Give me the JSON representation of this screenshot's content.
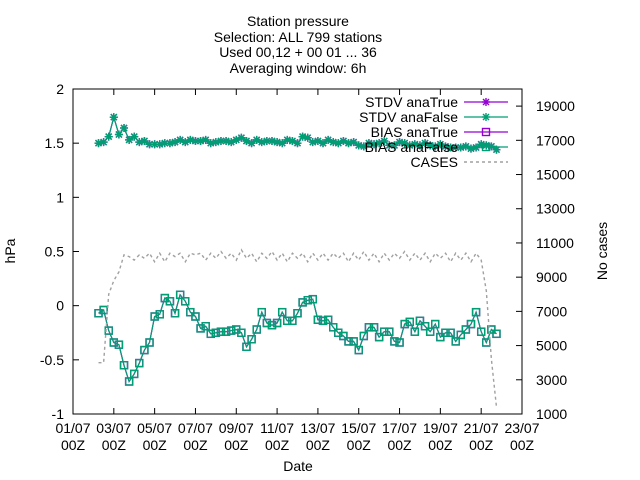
{
  "chart_data": {
    "type": "line",
    "title_lines": [
      "Station pressure",
      "Selection: ALL    799 stations",
      "Used 00,12 + 00 01 ... 36",
      "Averaging window:  6h"
    ],
    "xlabel": "Date",
    "ylabel": "hPa",
    "y2label": "No cases",
    "x_ticks": [
      {
        "day": 1,
        "label": "01/07",
        "sub": "00Z"
      },
      {
        "day": 3,
        "label": "03/07",
        "sub": "00Z"
      },
      {
        "day": 5,
        "label": "05/07",
        "sub": "00Z"
      },
      {
        "day": 7,
        "label": "07/07",
        "sub": "00Z"
      },
      {
        "day": 9,
        "label": "09/07",
        "sub": "00Z"
      },
      {
        "day": 11,
        "label": "11/07",
        "sub": "00Z"
      },
      {
        "day": 13,
        "label": "13/07",
        "sub": "00Z"
      },
      {
        "day": 15,
        "label": "15/07",
        "sub": "00Z"
      },
      {
        "day": 17,
        "label": "17/07",
        "sub": "00Z"
      },
      {
        "day": 19,
        "label": "19/07",
        "sub": "00Z"
      },
      {
        "day": 21,
        "label": "21/07",
        "sub": "00Z"
      },
      {
        "day": 23,
        "label": "23/07",
        "sub": "00Z"
      }
    ],
    "xlim": [
      1,
      23
    ],
    "ylim": [
      -1,
      2
    ],
    "y_ticks": [
      {
        "v": -1,
        "label": "-1"
      },
      {
        "v": -0.5,
        "label": "-0.5"
      },
      {
        "v": 0,
        "label": "0"
      },
      {
        "v": 0.5,
        "label": "0.5"
      },
      {
        "v": 1,
        "label": "1"
      },
      {
        "v": 1.5,
        "label": "1.5"
      },
      {
        "v": 2,
        "label": "2"
      }
    ],
    "y2lim": [
      1000,
      20000
    ],
    "y2_ticks": [
      {
        "v": 1000,
        "label": "1000"
      },
      {
        "v": 3000,
        "label": "3000"
      },
      {
        "v": 5000,
        "label": "5000"
      },
      {
        "v": 7000,
        "label": "7000"
      },
      {
        "v": 9000,
        "label": "9000"
      },
      {
        "v": 11000,
        "label": "11000"
      },
      {
        "v": 13000,
        "label": "13000"
      },
      {
        "v": 15000,
        "label": "15000"
      },
      {
        "v": 17000,
        "label": "17000"
      },
      {
        "v": 19000,
        "label": "19000"
      }
    ],
    "legend_position": "top-right",
    "series": [
      {
        "name": "STDV anaTrue",
        "color": "#9400d3",
        "marker": "star",
        "axis": "y1",
        "x": [
          2.25,
          2.5,
          2.75,
          3.0,
          3.25,
          3.5,
          3.75,
          4.0,
          4.25,
          4.5,
          4.75,
          5.0,
          5.25,
          5.5,
          5.75,
          6.0,
          6.25,
          6.5,
          6.75,
          7.0,
          7.25,
          7.5,
          7.75,
          8.0,
          8.25,
          8.5,
          8.75,
          9.0,
          9.25,
          9.5,
          9.75,
          10.0,
          10.25,
          10.5,
          10.75,
          11.0,
          11.25,
          11.5,
          11.75,
          12.0,
          12.25,
          12.5,
          12.75,
          13.0,
          13.25,
          13.5,
          13.75,
          14.0,
          14.25,
          14.5,
          14.75,
          15.0,
          15.25,
          15.5,
          15.75,
          16.0,
          16.25,
          16.5,
          16.75,
          17.0,
          17.25,
          17.5,
          17.75,
          18.0,
          18.25,
          18.5,
          18.75,
          19.0,
          19.25,
          19.5,
          19.75,
          20.0,
          20.25,
          20.5,
          20.75,
          21.0,
          21.25,
          21.5,
          21.75
        ],
        "y": [
          1.5,
          1.51,
          1.56,
          1.74,
          1.58,
          1.64,
          1.53,
          1.56,
          1.51,
          1.52,
          1.49,
          1.49,
          1.49,
          1.5,
          1.5,
          1.51,
          1.53,
          1.51,
          1.53,
          1.52,
          1.52,
          1.53,
          1.5,
          1.51,
          1.52,
          1.52,
          1.51,
          1.53,
          1.55,
          1.52,
          1.5,
          1.53,
          1.51,
          1.52,
          1.52,
          1.51,
          1.5,
          1.53,
          1.52,
          1.5,
          1.56,
          1.55,
          1.51,
          1.52,
          1.5,
          1.53,
          1.51,
          1.5,
          1.52,
          1.5,
          1.51,
          1.48,
          1.47,
          1.5,
          1.49,
          1.5,
          1.52,
          1.48,
          1.48,
          1.51,
          1.5,
          1.48,
          1.49,
          1.48,
          1.5,
          1.48,
          1.47,
          1.49,
          1.47,
          1.46,
          1.46,
          1.46,
          1.47,
          1.45,
          1.46,
          1.49,
          1.48,
          1.47,
          1.44
        ]
      },
      {
        "name": "STDV anaFalse",
        "color": "#009e73",
        "marker": "star",
        "axis": "y1",
        "x": [
          2.25,
          2.5,
          2.75,
          3.0,
          3.25,
          3.5,
          3.75,
          4.0,
          4.25,
          4.5,
          4.75,
          5.0,
          5.25,
          5.5,
          5.75,
          6.0,
          6.25,
          6.5,
          6.75,
          7.0,
          7.25,
          7.5,
          7.75,
          8.0,
          8.25,
          8.5,
          8.75,
          9.0,
          9.25,
          9.5,
          9.75,
          10.0,
          10.25,
          10.5,
          10.75,
          11.0,
          11.25,
          11.5,
          11.75,
          12.0,
          12.25,
          12.5,
          12.75,
          13.0,
          13.25,
          13.5,
          13.75,
          14.0,
          14.25,
          14.5,
          14.75,
          15.0,
          15.25,
          15.5,
          15.75,
          16.0,
          16.25,
          16.5,
          16.75,
          17.0,
          17.25,
          17.5,
          17.75,
          18.0,
          18.25,
          18.5,
          18.75,
          19.0,
          19.25,
          19.5,
          19.75,
          20.0,
          20.25,
          20.5,
          20.75,
          21.0,
          21.25,
          21.5,
          21.75
        ],
        "y": [
          1.5,
          1.51,
          1.56,
          1.74,
          1.58,
          1.64,
          1.53,
          1.56,
          1.51,
          1.52,
          1.49,
          1.49,
          1.49,
          1.5,
          1.5,
          1.51,
          1.53,
          1.51,
          1.53,
          1.52,
          1.52,
          1.53,
          1.5,
          1.51,
          1.52,
          1.52,
          1.51,
          1.53,
          1.55,
          1.52,
          1.5,
          1.53,
          1.51,
          1.52,
          1.52,
          1.51,
          1.5,
          1.53,
          1.52,
          1.5,
          1.56,
          1.55,
          1.51,
          1.52,
          1.5,
          1.53,
          1.51,
          1.5,
          1.52,
          1.5,
          1.51,
          1.48,
          1.47,
          1.5,
          1.49,
          1.5,
          1.52,
          1.48,
          1.48,
          1.51,
          1.5,
          1.48,
          1.49,
          1.48,
          1.5,
          1.48,
          1.47,
          1.49,
          1.47,
          1.46,
          1.46,
          1.46,
          1.47,
          1.45,
          1.46,
          1.49,
          1.48,
          1.47,
          1.44
        ]
      },
      {
        "name": "BIAS anaTrue",
        "color": "#9400d3",
        "marker": "square",
        "axis": "y1",
        "x": [
          2.25,
          2.5,
          2.75,
          3.0,
          3.25,
          3.5,
          3.75,
          4.0,
          4.25,
          4.5,
          4.75,
          5.0,
          5.25,
          5.5,
          5.75,
          6.0,
          6.25,
          6.5,
          6.75,
          7.0,
          7.25,
          7.5,
          7.75,
          8.0,
          8.25,
          8.5,
          8.75,
          9.0,
          9.25,
          9.5,
          9.75,
          10.0,
          10.25,
          10.5,
          10.75,
          11.0,
          11.25,
          11.5,
          11.75,
          12.0,
          12.25,
          12.5,
          12.75,
          13.0,
          13.25,
          13.5,
          13.75,
          14.0,
          14.25,
          14.5,
          14.75,
          15.0,
          15.25,
          15.5,
          15.75,
          16.0,
          16.25,
          16.5,
          16.75,
          17.0,
          17.25,
          17.5,
          17.75,
          18.0,
          18.25,
          18.5,
          18.75,
          19.0,
          19.25,
          19.5,
          19.75,
          20.0,
          20.25,
          20.5,
          20.75,
          21.0,
          21.25,
          21.5,
          21.75
        ],
        "y": [
          -0.07,
          -0.04,
          -0.23,
          -0.34,
          -0.36,
          -0.55,
          -0.7,
          -0.63,
          -0.53,
          -0.41,
          -0.34,
          -0.1,
          -0.08,
          0.07,
          0.04,
          -0.07,
          0.1,
          0.04,
          -0.06,
          -0.1,
          -0.21,
          -0.19,
          -0.26,
          -0.25,
          -0.24,
          -0.24,
          -0.23,
          -0.22,
          -0.25,
          -0.38,
          -0.31,
          -0.22,
          -0.06,
          -0.16,
          -0.18,
          -0.16,
          -0.06,
          -0.14,
          -0.14,
          -0.07,
          0.03,
          0.05,
          0.06,
          -0.13,
          -0.14,
          -0.13,
          -0.2,
          -0.25,
          -0.28,
          -0.33,
          -0.33,
          -0.41,
          -0.28,
          -0.2,
          -0.2,
          -0.29,
          -0.24,
          -0.24,
          -0.33,
          -0.34,
          -0.17,
          -0.15,
          -0.24,
          -0.14,
          -0.19,
          -0.24,
          -0.17,
          -0.29,
          -0.25,
          -0.25,
          -0.33,
          -0.27,
          -0.22,
          -0.17,
          -0.06,
          -0.24,
          -0.34,
          -0.22,
          -0.26
        ]
      },
      {
        "name": "BIAS anaFalse",
        "color": "#009e73",
        "marker": "square",
        "axis": "y1",
        "x": [
          2.25,
          2.5,
          2.75,
          3.0,
          3.25,
          3.5,
          3.75,
          4.0,
          4.25,
          4.5,
          4.75,
          5.0,
          5.25,
          5.5,
          5.75,
          6.0,
          6.25,
          6.5,
          6.75,
          7.0,
          7.25,
          7.5,
          7.75,
          8.0,
          8.25,
          8.5,
          8.75,
          9.0,
          9.25,
          9.5,
          9.75,
          10.0,
          10.25,
          10.5,
          10.75,
          11.0,
          11.25,
          11.5,
          11.75,
          12.0,
          12.25,
          12.5,
          12.75,
          13.0,
          13.25,
          13.5,
          13.75,
          14.0,
          14.25,
          14.5,
          14.75,
          15.0,
          15.25,
          15.5,
          15.75,
          16.0,
          16.25,
          16.5,
          16.75,
          17.0,
          17.25,
          17.5,
          17.75,
          18.0,
          18.25,
          18.5,
          18.75,
          19.0,
          19.25,
          19.5,
          19.75,
          20.0,
          20.25,
          20.5,
          20.75,
          21.0,
          21.25,
          21.5,
          21.75
        ],
        "y": [
          -0.07,
          -0.04,
          -0.23,
          -0.34,
          -0.36,
          -0.55,
          -0.7,
          -0.63,
          -0.53,
          -0.41,
          -0.34,
          -0.1,
          -0.08,
          0.07,
          0.04,
          -0.07,
          0.1,
          0.04,
          -0.06,
          -0.1,
          -0.21,
          -0.19,
          -0.26,
          -0.25,
          -0.24,
          -0.24,
          -0.23,
          -0.22,
          -0.25,
          -0.38,
          -0.31,
          -0.22,
          -0.06,
          -0.16,
          -0.18,
          -0.16,
          -0.06,
          -0.14,
          -0.14,
          -0.07,
          0.03,
          0.05,
          0.06,
          -0.13,
          -0.14,
          -0.13,
          -0.2,
          -0.25,
          -0.28,
          -0.33,
          -0.33,
          -0.41,
          -0.28,
          -0.2,
          -0.2,
          -0.29,
          -0.24,
          -0.24,
          -0.33,
          -0.34,
          -0.17,
          -0.15,
          -0.24,
          -0.14,
          -0.19,
          -0.24,
          -0.17,
          -0.29,
          -0.25,
          -0.25,
          -0.33,
          -0.27,
          -0.22,
          -0.17,
          -0.06,
          -0.24,
          -0.34,
          -0.22,
          -0.26
        ]
      },
      {
        "name": "CASES",
        "color": "#a0a0a0",
        "marker": "none",
        "dashed": true,
        "axis": "y2",
        "x": [
          2.25,
          2.5,
          2.75,
          3.0,
          3.25,
          3.5,
          3.75,
          4.0,
          4.25,
          4.5,
          4.75,
          5.0,
          5.25,
          5.5,
          5.75,
          6.0,
          6.25,
          6.5,
          6.75,
          7.0,
          7.25,
          7.5,
          7.75,
          8.0,
          8.25,
          8.5,
          8.75,
          9.0,
          9.25,
          9.5,
          9.75,
          10.0,
          10.25,
          10.5,
          10.75,
          11.0,
          11.25,
          11.5,
          11.75,
          12.0,
          12.25,
          12.5,
          12.75,
          13.0,
          13.25,
          13.5,
          13.75,
          14.0,
          14.25,
          14.5,
          14.75,
          15.0,
          15.25,
          15.5,
          15.75,
          16.0,
          16.25,
          16.5,
          16.75,
          17.0,
          17.25,
          17.5,
          17.75,
          18.0,
          18.25,
          18.5,
          18.75,
          19.0,
          19.25,
          19.5,
          19.75,
          20.0,
          20.25,
          20.5,
          20.75,
          21.0,
          21.25,
          21.5,
          21.75
        ],
        "y": [
          4000,
          4000,
          8000,
          8800,
          9300,
          10300,
          10200,
          10000,
          10300,
          10100,
          10400,
          9900,
          10400,
          9900,
          10400,
          10200,
          10400,
          9900,
          10400,
          10300,
          10400,
          10000,
          10400,
          10100,
          10500,
          10100,
          10400,
          10000,
          10600,
          10100,
          10400,
          9900,
          10400,
          10100,
          10500,
          10000,
          10400,
          9900,
          10400,
          10100,
          10400,
          9900,
          10400,
          10000,
          10400,
          10000,
          10400,
          10100,
          10400,
          9900,
          10400,
          10000,
          10500,
          10000,
          10400,
          9900,
          10400,
          10000,
          10400,
          10100,
          10500,
          10000,
          10400,
          10000,
          10400,
          9900,
          10400,
          10100,
          10400,
          9900,
          10400,
          10000,
          10400,
          9900,
          10400,
          10000,
          8200,
          4200,
          1400
        ]
      }
    ]
  }
}
